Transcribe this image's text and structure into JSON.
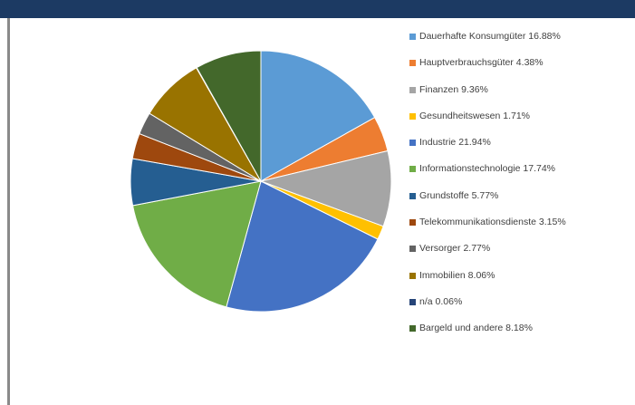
{
  "chart_data": {
    "type": "pie",
    "title": "",
    "slices": [
      {
        "label": "Dauerhafte Konsumgüter 16.88%",
        "value": 16.88,
        "color": "#5b9bd5"
      },
      {
        "label": "Hauptverbrauchsgüter 4.38%",
        "value": 4.38,
        "color": "#ed7d31"
      },
      {
        "label": "Finanzen  9.36%",
        "value": 9.36,
        "color": "#a5a5a5"
      },
      {
        "label": "Gesundheitswesen 1.71%",
        "value": 1.71,
        "color": "#ffc000"
      },
      {
        "label": "Industrie  21.94%",
        "value": 21.94,
        "color": "#4472c4"
      },
      {
        "label": "Informationstechnologie  17.74%",
        "value": 17.74,
        "color": "#70ad47"
      },
      {
        "label": "Grundstoffe 5.77%",
        "value": 5.77,
        "color": "#255e91"
      },
      {
        "label": "Telekommunikationsdienste 3.15%",
        "value": 3.15,
        "color": "#9e480e"
      },
      {
        "label": "Versorger 2.77%",
        "value": 2.77,
        "color": "#636363"
      },
      {
        "label": "Immobilien  8.06%",
        "value": 8.06,
        "color": "#997300"
      },
      {
        "label": "n/a  0.06%",
        "value": 0.06,
        "color": "#264478"
      },
      {
        "label": "Bargeld und andere 8.18%",
        "value": 8.18,
        "color": "#43682b"
      }
    ],
    "legend_position": "right"
  },
  "colors": {
    "header": "#1c3a63",
    "rule": "#8a8a8a"
  }
}
